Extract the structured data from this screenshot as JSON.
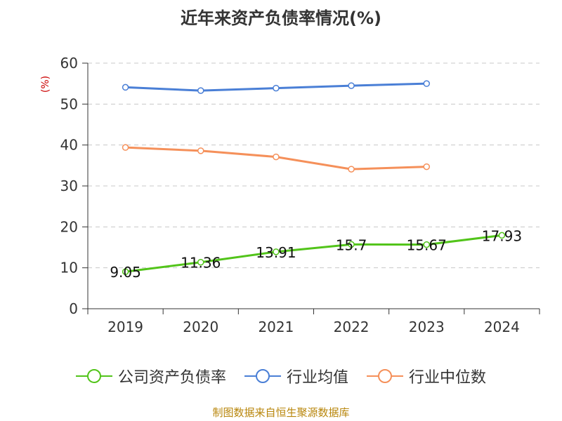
{
  "chart_data": {
    "type": "line",
    "title": "近年来资产负债率情况(%)",
    "ylabel": "(%)",
    "xlabel": "",
    "categories": [
      "2019",
      "2020",
      "2021",
      "2022",
      "2023",
      "2024"
    ],
    "ylim": [
      0,
      60
    ],
    "yticks": [
      0,
      10,
      20,
      30,
      40,
      50,
      60
    ],
    "grid": true,
    "legend_position": "bottom",
    "series": [
      {
        "name": "公司资产负债率",
        "color": "#52c41a",
        "values": [
          9.05,
          11.36,
          13.91,
          15.7,
          15.67,
          17.93
        ],
        "labels": [
          "9.05",
          "11.36",
          "13.91",
          "15.7",
          "15.67",
          "17.93"
        ]
      },
      {
        "name": "行业均值",
        "color": "#4a7fd6",
        "values": [
          54.1,
          53.3,
          53.9,
          54.5,
          55.0,
          null
        ]
      },
      {
        "name": "行业中位数",
        "color": "#f5905a",
        "values": [
          39.4,
          38.6,
          37.1,
          34.1,
          34.7,
          null
        ]
      }
    ]
  },
  "source": "制图数据来自恒生聚源数据库"
}
